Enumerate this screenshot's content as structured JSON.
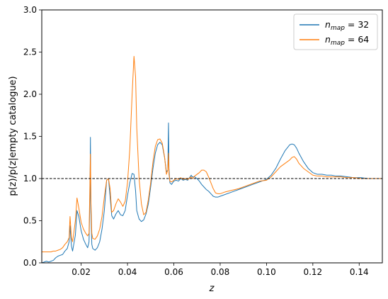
{
  "chart_data": {
    "type": "line",
    "title": "",
    "xlabel": "z",
    "ylabel": "p(z)/p(z|empty catalogue)",
    "xlim": [
      0.003,
      0.15
    ],
    "ylim": [
      0.0,
      3.0
    ],
    "xticks": [
      0.02,
      0.04,
      0.06,
      0.08,
      0.1,
      0.12,
      0.14
    ],
    "xtick_labels": [
      "0.02",
      "0.04",
      "0.06",
      "0.08",
      "0.10",
      "0.12",
      "0.14"
    ],
    "yticks": [
      0.0,
      0.5,
      1.0,
      1.5,
      2.0,
      2.5,
      3.0
    ],
    "ytick_labels": [
      "0.0",
      "0.5",
      "1.0",
      "1.5",
      "2.0",
      "2.5",
      "3.0"
    ],
    "grid": false,
    "legend_position": "top-right",
    "reference_line": {
      "y": 1.0,
      "style": "dashed",
      "color": "#000000"
    },
    "series": [
      {
        "name": "n_map = 32",
        "legend_sym": "n",
        "legend_sub": "map",
        "legend_val": "= 32",
        "color": "#1f77b4",
        "x": [
          0.003,
          0.005,
          0.006,
          0.007,
          0.008,
          0.009,
          0.01,
          0.011,
          0.012,
          0.013,
          0.014,
          0.0148,
          0.0152,
          0.0158,
          0.0163,
          0.0168,
          0.0175,
          0.0182,
          0.019,
          0.02,
          0.021,
          0.022,
          0.0228,
          0.0234,
          0.0238,
          0.024,
          0.0242,
          0.0246,
          0.025,
          0.026,
          0.027,
          0.028,
          0.029,
          0.03,
          0.031,
          0.0318,
          0.0325,
          0.0332,
          0.034,
          0.035,
          0.036,
          0.037,
          0.038,
          0.039,
          0.04,
          0.041,
          0.042,
          0.0428,
          0.0435,
          0.044,
          0.045,
          0.046,
          0.047,
          0.048,
          0.049,
          0.05,
          0.051,
          0.052,
          0.053,
          0.054,
          0.055,
          0.056,
          0.0568,
          0.0574,
          0.0577,
          0.0579,
          0.0583,
          0.059,
          0.06,
          0.061,
          0.062,
          0.063,
          0.064,
          0.065,
          0.066,
          0.067,
          0.0675,
          0.068,
          0.069,
          0.07,
          0.071,
          0.072,
          0.073,
          0.074,
          0.075,
          0.076,
          0.077,
          0.078,
          0.079,
          0.08,
          0.082,
          0.085,
          0.088,
          0.091,
          0.094,
          0.097,
          0.1,
          0.102,
          0.104,
          0.106,
          0.108,
          0.11,
          0.111,
          0.112,
          0.113,
          0.114,
          0.116,
          0.118,
          0.12,
          0.122,
          0.124,
          0.126,
          0.128,
          0.13,
          0.132,
          0.135,
          0.138,
          0.141,
          0.144,
          0.147,
          0.15
        ],
        "y": [
          0.0,
          0.02,
          0.01,
          0.02,
          0.03,
          0.06,
          0.08,
          0.09,
          0.1,
          0.14,
          0.17,
          0.25,
          0.44,
          0.2,
          0.14,
          0.22,
          0.33,
          0.62,
          0.55,
          0.38,
          0.28,
          0.22,
          0.18,
          0.25,
          0.8,
          1.49,
          0.6,
          0.22,
          0.17,
          0.15,
          0.18,
          0.25,
          0.4,
          0.62,
          0.98,
          1.0,
          0.78,
          0.56,
          0.52,
          0.58,
          0.62,
          0.57,
          0.56,
          0.62,
          0.8,
          0.95,
          1.06,
          1.05,
          0.85,
          0.62,
          0.52,
          0.49,
          0.51,
          0.58,
          0.7,
          0.9,
          1.12,
          1.3,
          1.4,
          1.43,
          1.4,
          1.25,
          1.08,
          1.1,
          1.66,
          1.12,
          0.95,
          0.93,
          0.97,
          0.98,
          0.97,
          1.0,
          0.98,
          0.99,
          0.98,
          1.02,
          1.04,
          1.02,
          1.02,
          1.0,
          0.97,
          0.93,
          0.9,
          0.87,
          0.85,
          0.82,
          0.79,
          0.78,
          0.78,
          0.79,
          0.81,
          0.84,
          0.87,
          0.9,
          0.93,
          0.96,
          0.99,
          1.04,
          1.12,
          1.23,
          1.33,
          1.4,
          1.41,
          1.4,
          1.36,
          1.3,
          1.2,
          1.12,
          1.07,
          1.05,
          1.05,
          1.04,
          1.04,
          1.03,
          1.03,
          1.02,
          1.01,
          1.01,
          1.0,
          1.0,
          1.0
        ]
      },
      {
        "name": "n_map = 64",
        "legend_sym": "n",
        "legend_sub": "map",
        "legend_val": "= 64",
        "color": "#ff7f0e",
        "x": [
          0.003,
          0.005,
          0.006,
          0.007,
          0.008,
          0.009,
          0.01,
          0.011,
          0.012,
          0.013,
          0.014,
          0.0148,
          0.0152,
          0.0158,
          0.0163,
          0.0168,
          0.0175,
          0.0182,
          0.019,
          0.02,
          0.021,
          0.022,
          0.0228,
          0.0234,
          0.0238,
          0.024,
          0.0242,
          0.0246,
          0.025,
          0.026,
          0.027,
          0.028,
          0.029,
          0.03,
          0.031,
          0.0318,
          0.0325,
          0.0332,
          0.034,
          0.035,
          0.036,
          0.037,
          0.038,
          0.039,
          0.04,
          0.041,
          0.042,
          0.0428,
          0.0435,
          0.044,
          0.045,
          0.046,
          0.047,
          0.048,
          0.049,
          0.05,
          0.051,
          0.052,
          0.053,
          0.054,
          0.055,
          0.056,
          0.0568,
          0.0574,
          0.0577,
          0.0579,
          0.0583,
          0.059,
          0.06,
          0.061,
          0.062,
          0.063,
          0.064,
          0.065,
          0.066,
          0.067,
          0.0675,
          0.068,
          0.069,
          0.07,
          0.071,
          0.072,
          0.073,
          0.074,
          0.075,
          0.076,
          0.077,
          0.078,
          0.079,
          0.08,
          0.082,
          0.085,
          0.088,
          0.091,
          0.094,
          0.097,
          0.1,
          0.102,
          0.104,
          0.106,
          0.108,
          0.11,
          0.111,
          0.112,
          0.113,
          0.114,
          0.116,
          0.118,
          0.12,
          0.122,
          0.124,
          0.126,
          0.128,
          0.13,
          0.132,
          0.135,
          0.138,
          0.141,
          0.144,
          0.147,
          0.15
        ],
        "y": [
          0.13,
          0.13,
          0.13,
          0.13,
          0.14,
          0.14,
          0.15,
          0.16,
          0.18,
          0.22,
          0.25,
          0.3,
          0.55,
          0.3,
          0.25,
          0.35,
          0.5,
          0.77,
          0.65,
          0.48,
          0.4,
          0.35,
          0.32,
          0.35,
          0.95,
          1.29,
          0.75,
          0.35,
          0.29,
          0.28,
          0.32,
          0.4,
          0.55,
          0.78,
          0.98,
          1.0,
          0.88,
          0.6,
          0.62,
          0.7,
          0.76,
          0.72,
          0.67,
          0.73,
          0.95,
          1.35,
          2.0,
          2.45,
          2.2,
          1.6,
          1.0,
          0.7,
          0.57,
          0.6,
          0.75,
          0.95,
          1.2,
          1.38,
          1.46,
          1.47,
          1.42,
          1.26,
          1.05,
          1.1,
          1.3,
          1.05,
          0.97,
          0.96,
          0.98,
          1.0,
          0.99,
          1.01,
          0.99,
          1.0,
          0.99,
          1.01,
          1.02,
          1.0,
          1.03,
          1.05,
          1.07,
          1.1,
          1.1,
          1.08,
          1.02,
          0.95,
          0.88,
          0.83,
          0.82,
          0.82,
          0.84,
          0.86,
          0.88,
          0.91,
          0.94,
          0.97,
          0.98,
          1.02,
          1.08,
          1.14,
          1.18,
          1.22,
          1.25,
          1.26,
          1.23,
          1.18,
          1.12,
          1.08,
          1.04,
          1.03,
          1.03,
          1.02,
          1.02,
          1.02,
          1.02,
          1.01,
          1.01,
          1.0,
          1.0,
          1.0,
          1.0
        ]
      }
    ]
  }
}
